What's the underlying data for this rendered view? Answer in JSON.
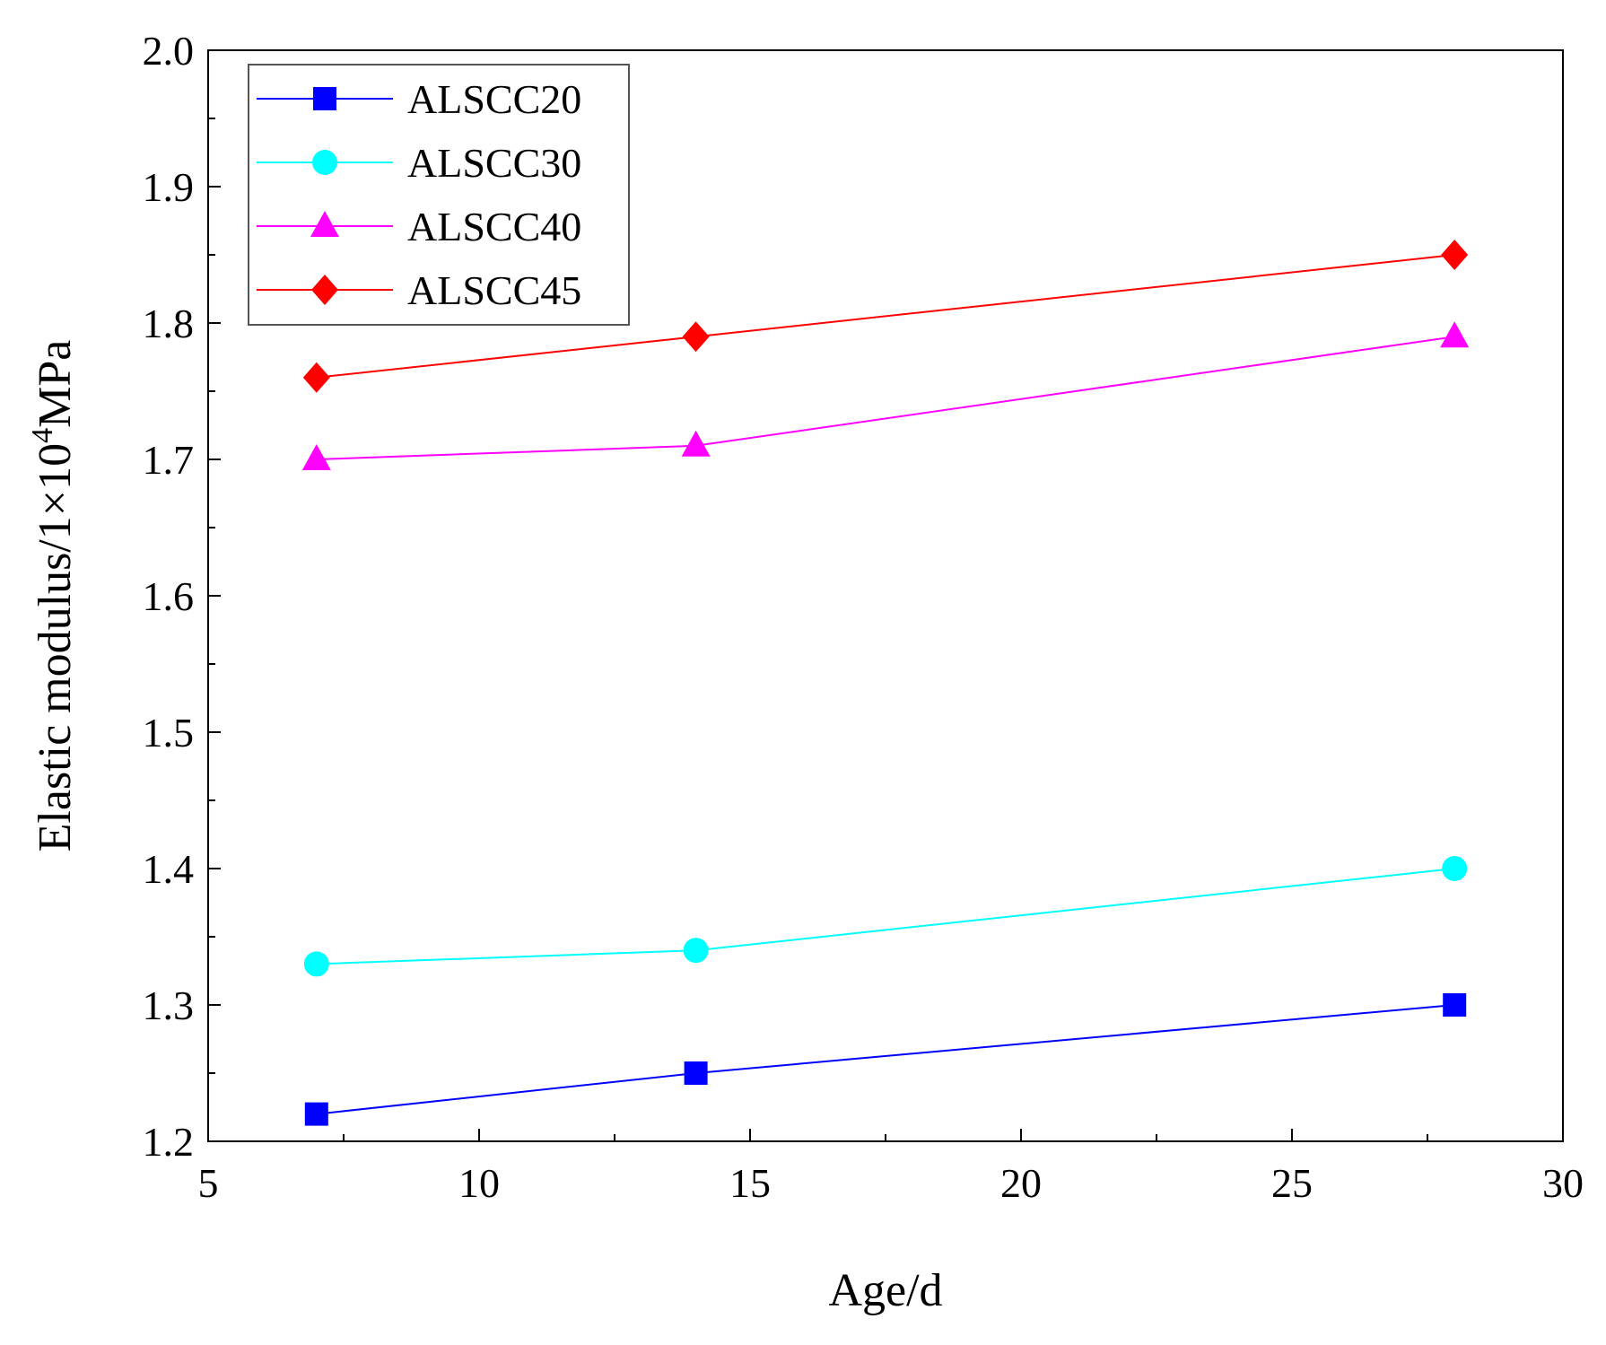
{
  "chart_data": {
    "type": "line",
    "title": "",
    "xlabel": "Age/d",
    "ylabel": {
      "prefix": "Elastic modulus/1×10",
      "superscript": "4",
      "suffix": "MPa"
    },
    "xlim": [
      5,
      30
    ],
    "ylim": [
      1.2,
      2.0
    ],
    "xticks": [
      5,
      10,
      15,
      20,
      25,
      30
    ],
    "yticks": [
      1.2,
      1.3,
      1.4,
      1.5,
      1.6,
      1.7,
      1.8,
      1.9,
      2.0
    ],
    "xtick_labels": [
      "5",
      "10",
      "15",
      "20",
      "25",
      "30"
    ],
    "ytick_labels": [
      "1.2",
      "1.3",
      "1.4",
      "1.5",
      "1.6",
      "1.7",
      "1.8",
      "1.9",
      "2.0"
    ],
    "grid": false,
    "legend_position": "top-left",
    "x": [
      7,
      14,
      28
    ],
    "series": [
      {
        "name": "ALSCC20",
        "values": [
          1.22,
          1.25,
          1.3
        ],
        "color": "#0000ff",
        "marker": "square"
      },
      {
        "name": "ALSCC30",
        "values": [
          1.33,
          1.34,
          1.4
        ],
        "color": "#00ffff",
        "marker": "circle"
      },
      {
        "name": "ALSCC40",
        "values": [
          1.7,
          1.71,
          1.79
        ],
        "color": "#ff00ff",
        "marker": "triangle"
      },
      {
        "name": "ALSCC45",
        "values": [
          1.76,
          1.79,
          1.85
        ],
        "color": "#ff0000",
        "marker": "diamond"
      }
    ]
  }
}
